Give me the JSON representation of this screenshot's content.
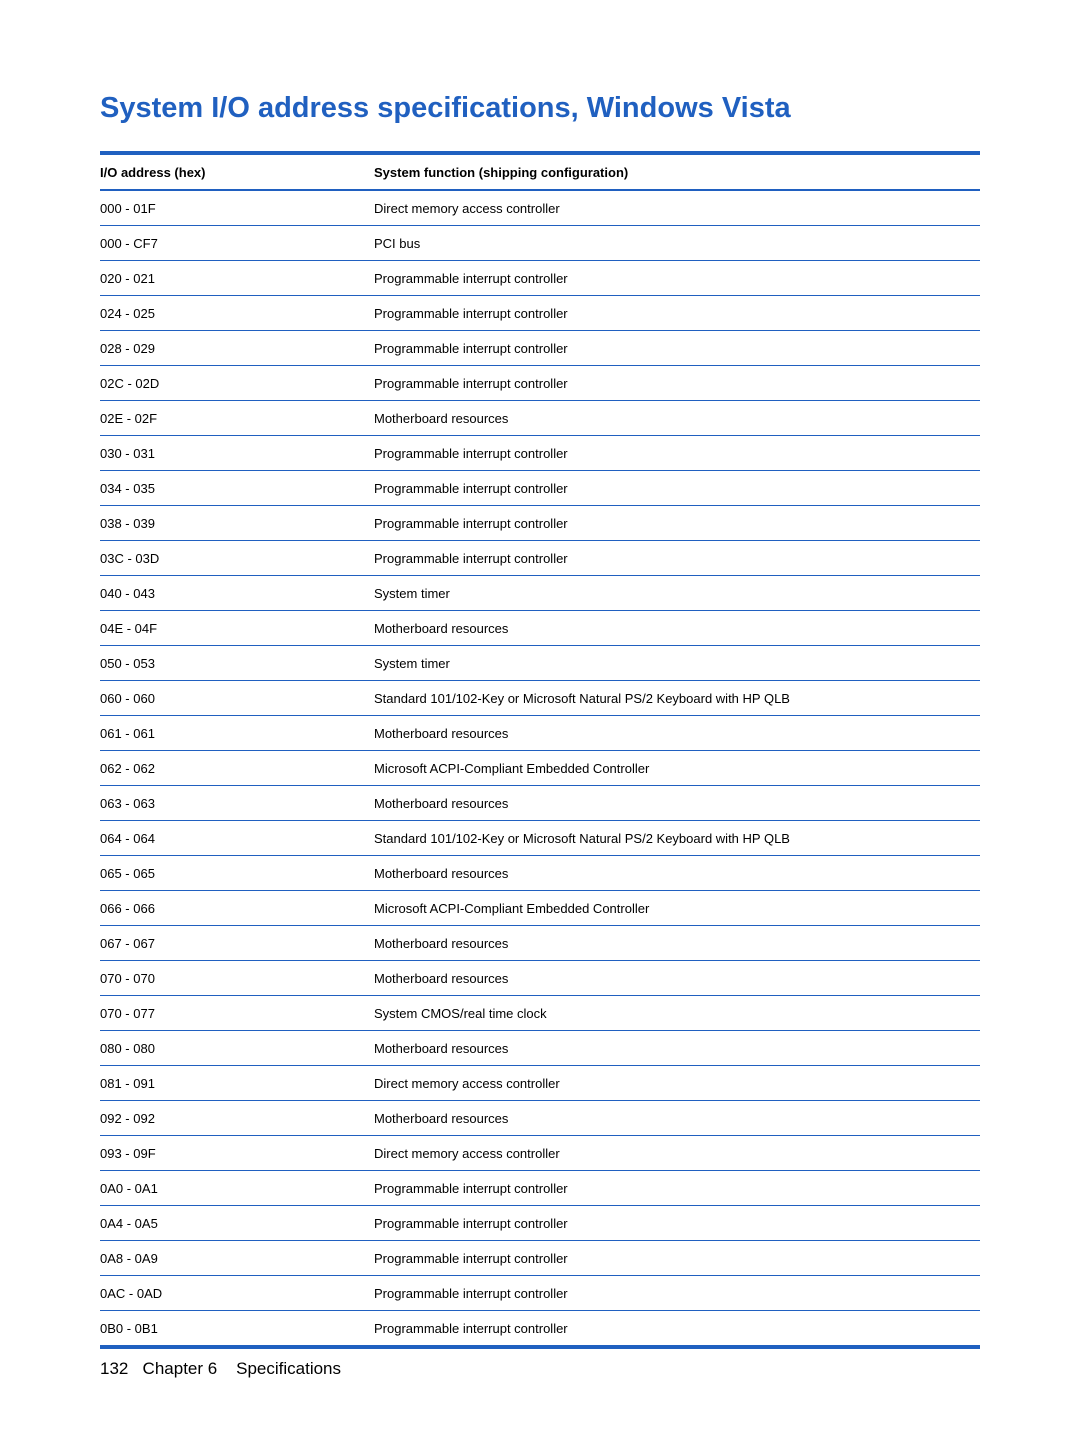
{
  "title": "System I/O address specifications, Windows Vista",
  "title_color": "#2060c0",
  "table": {
    "border_color": "#2060c0",
    "row_divider_color": "#2060c0",
    "text_color": "#000000",
    "header": {
      "col1": "I/O address (hex)",
      "col2": "System function (shipping configuration)"
    },
    "rows": [
      {
        "addr": "000 - 01F",
        "func": "Direct memory access controller"
      },
      {
        "addr": "000 - CF7",
        "func": "PCI bus"
      },
      {
        "addr": "020 - 021",
        "func": "Programmable interrupt controller"
      },
      {
        "addr": "024 - 025",
        "func": "Programmable interrupt controller"
      },
      {
        "addr": "028 - 029",
        "func": "Programmable interrupt controller"
      },
      {
        "addr": "02C - 02D",
        "func": "Programmable interrupt controller"
      },
      {
        "addr": "02E - 02F",
        "func": "Motherboard resources"
      },
      {
        "addr": "030 - 031",
        "func": "Programmable interrupt controller"
      },
      {
        "addr": "034 - 035",
        "func": "Programmable interrupt controller"
      },
      {
        "addr": "038 - 039",
        "func": "Programmable interrupt controller"
      },
      {
        "addr": "03C - 03D",
        "func": "Programmable interrupt controller"
      },
      {
        "addr": "040 - 043",
        "func": "System timer"
      },
      {
        "addr": "04E - 04F",
        "func": "Motherboard resources"
      },
      {
        "addr": "050 - 053",
        "func": "System timer"
      },
      {
        "addr": "060 - 060",
        "func": "Standard 101/102-Key or Microsoft Natural PS/2 Keyboard with HP QLB"
      },
      {
        "addr": "061 - 061",
        "func": "Motherboard resources"
      },
      {
        "addr": "062 - 062",
        "func": "Microsoft ACPI-Compliant Embedded Controller"
      },
      {
        "addr": "063 - 063",
        "func": "Motherboard resources"
      },
      {
        "addr": "064 - 064",
        "func": "Standard 101/102-Key or Microsoft Natural PS/2 Keyboard with HP QLB"
      },
      {
        "addr": "065 - 065",
        "func": "Motherboard resources"
      },
      {
        "addr": "066 - 066",
        "func": "Microsoft ACPI-Compliant Embedded Controller"
      },
      {
        "addr": "067 - 067",
        "func": "Motherboard resources"
      },
      {
        "addr": "070 - 070",
        "func": "Motherboard resources"
      },
      {
        "addr": "070 - 077",
        "func": "System CMOS/real time clock"
      },
      {
        "addr": "080 - 080",
        "func": "Motherboard resources"
      },
      {
        "addr": "081 - 091",
        "func": "Direct memory access controller"
      },
      {
        "addr": "092 - 092",
        "func": "Motherboard resources"
      },
      {
        "addr": "093 - 09F",
        "func": "Direct memory access controller"
      },
      {
        "addr": "0A0 - 0A1",
        "func": "Programmable interrupt controller"
      },
      {
        "addr": "0A4 - 0A5",
        "func": "Programmable interrupt controller"
      },
      {
        "addr": "0A8 - 0A9",
        "func": "Programmable interrupt controller"
      },
      {
        "addr": "0AC - 0AD",
        "func": "Programmable interrupt controller"
      },
      {
        "addr": "0B0 - 0B1",
        "func": "Programmable interrupt controller"
      }
    ]
  },
  "footer": {
    "page_number": "132",
    "chapter": "Chapter 6",
    "section": "Specifications"
  }
}
